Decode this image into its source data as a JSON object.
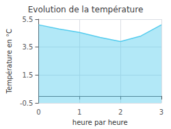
{
  "chart_data": {
    "type": "area",
    "title": "Evolution de la température",
    "xlabel": "heure par heure",
    "ylabel": "Température en °C",
    "x": [
      0,
      0.5,
      1,
      1.5,
      2,
      2.5,
      3
    ],
    "values": [
      5.1,
      4.8,
      4.55,
      4.2,
      3.9,
      4.3,
      5.1
    ],
    "xlim": [
      0,
      3
    ],
    "ylim": [
      -0.5,
      5.5
    ],
    "xticks": [
      0,
      1,
      2,
      3
    ],
    "yticks": [
      -0.5,
      1.5,
      3.5,
      5.5
    ],
    "color": "#55ccee",
    "grid": true
  }
}
